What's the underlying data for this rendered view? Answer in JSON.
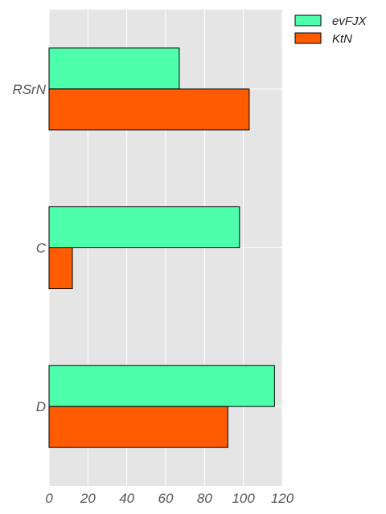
{
  "chart_data": {
    "type": "bar",
    "orientation": "horizontal",
    "categories": [
      "RSrN",
      "C",
      "D"
    ],
    "series": [
      {
        "name": "evFJX",
        "values": [
          67,
          98,
          116
        ],
        "color": "#4dffab"
      },
      {
        "name": "KtN",
        "values": [
          103,
          12,
          92
        ],
        "color": "#ff5b00"
      }
    ],
    "xlim": [
      0,
      120
    ],
    "xticks": [
      0,
      20,
      40,
      60,
      80,
      100,
      120
    ],
    "xlabel": "",
    "ylabel": "",
    "title": "",
    "grid": true,
    "legend_position": "top-right",
    "background": "#e5e5e5",
    "grid_color": "#ffffff"
  }
}
